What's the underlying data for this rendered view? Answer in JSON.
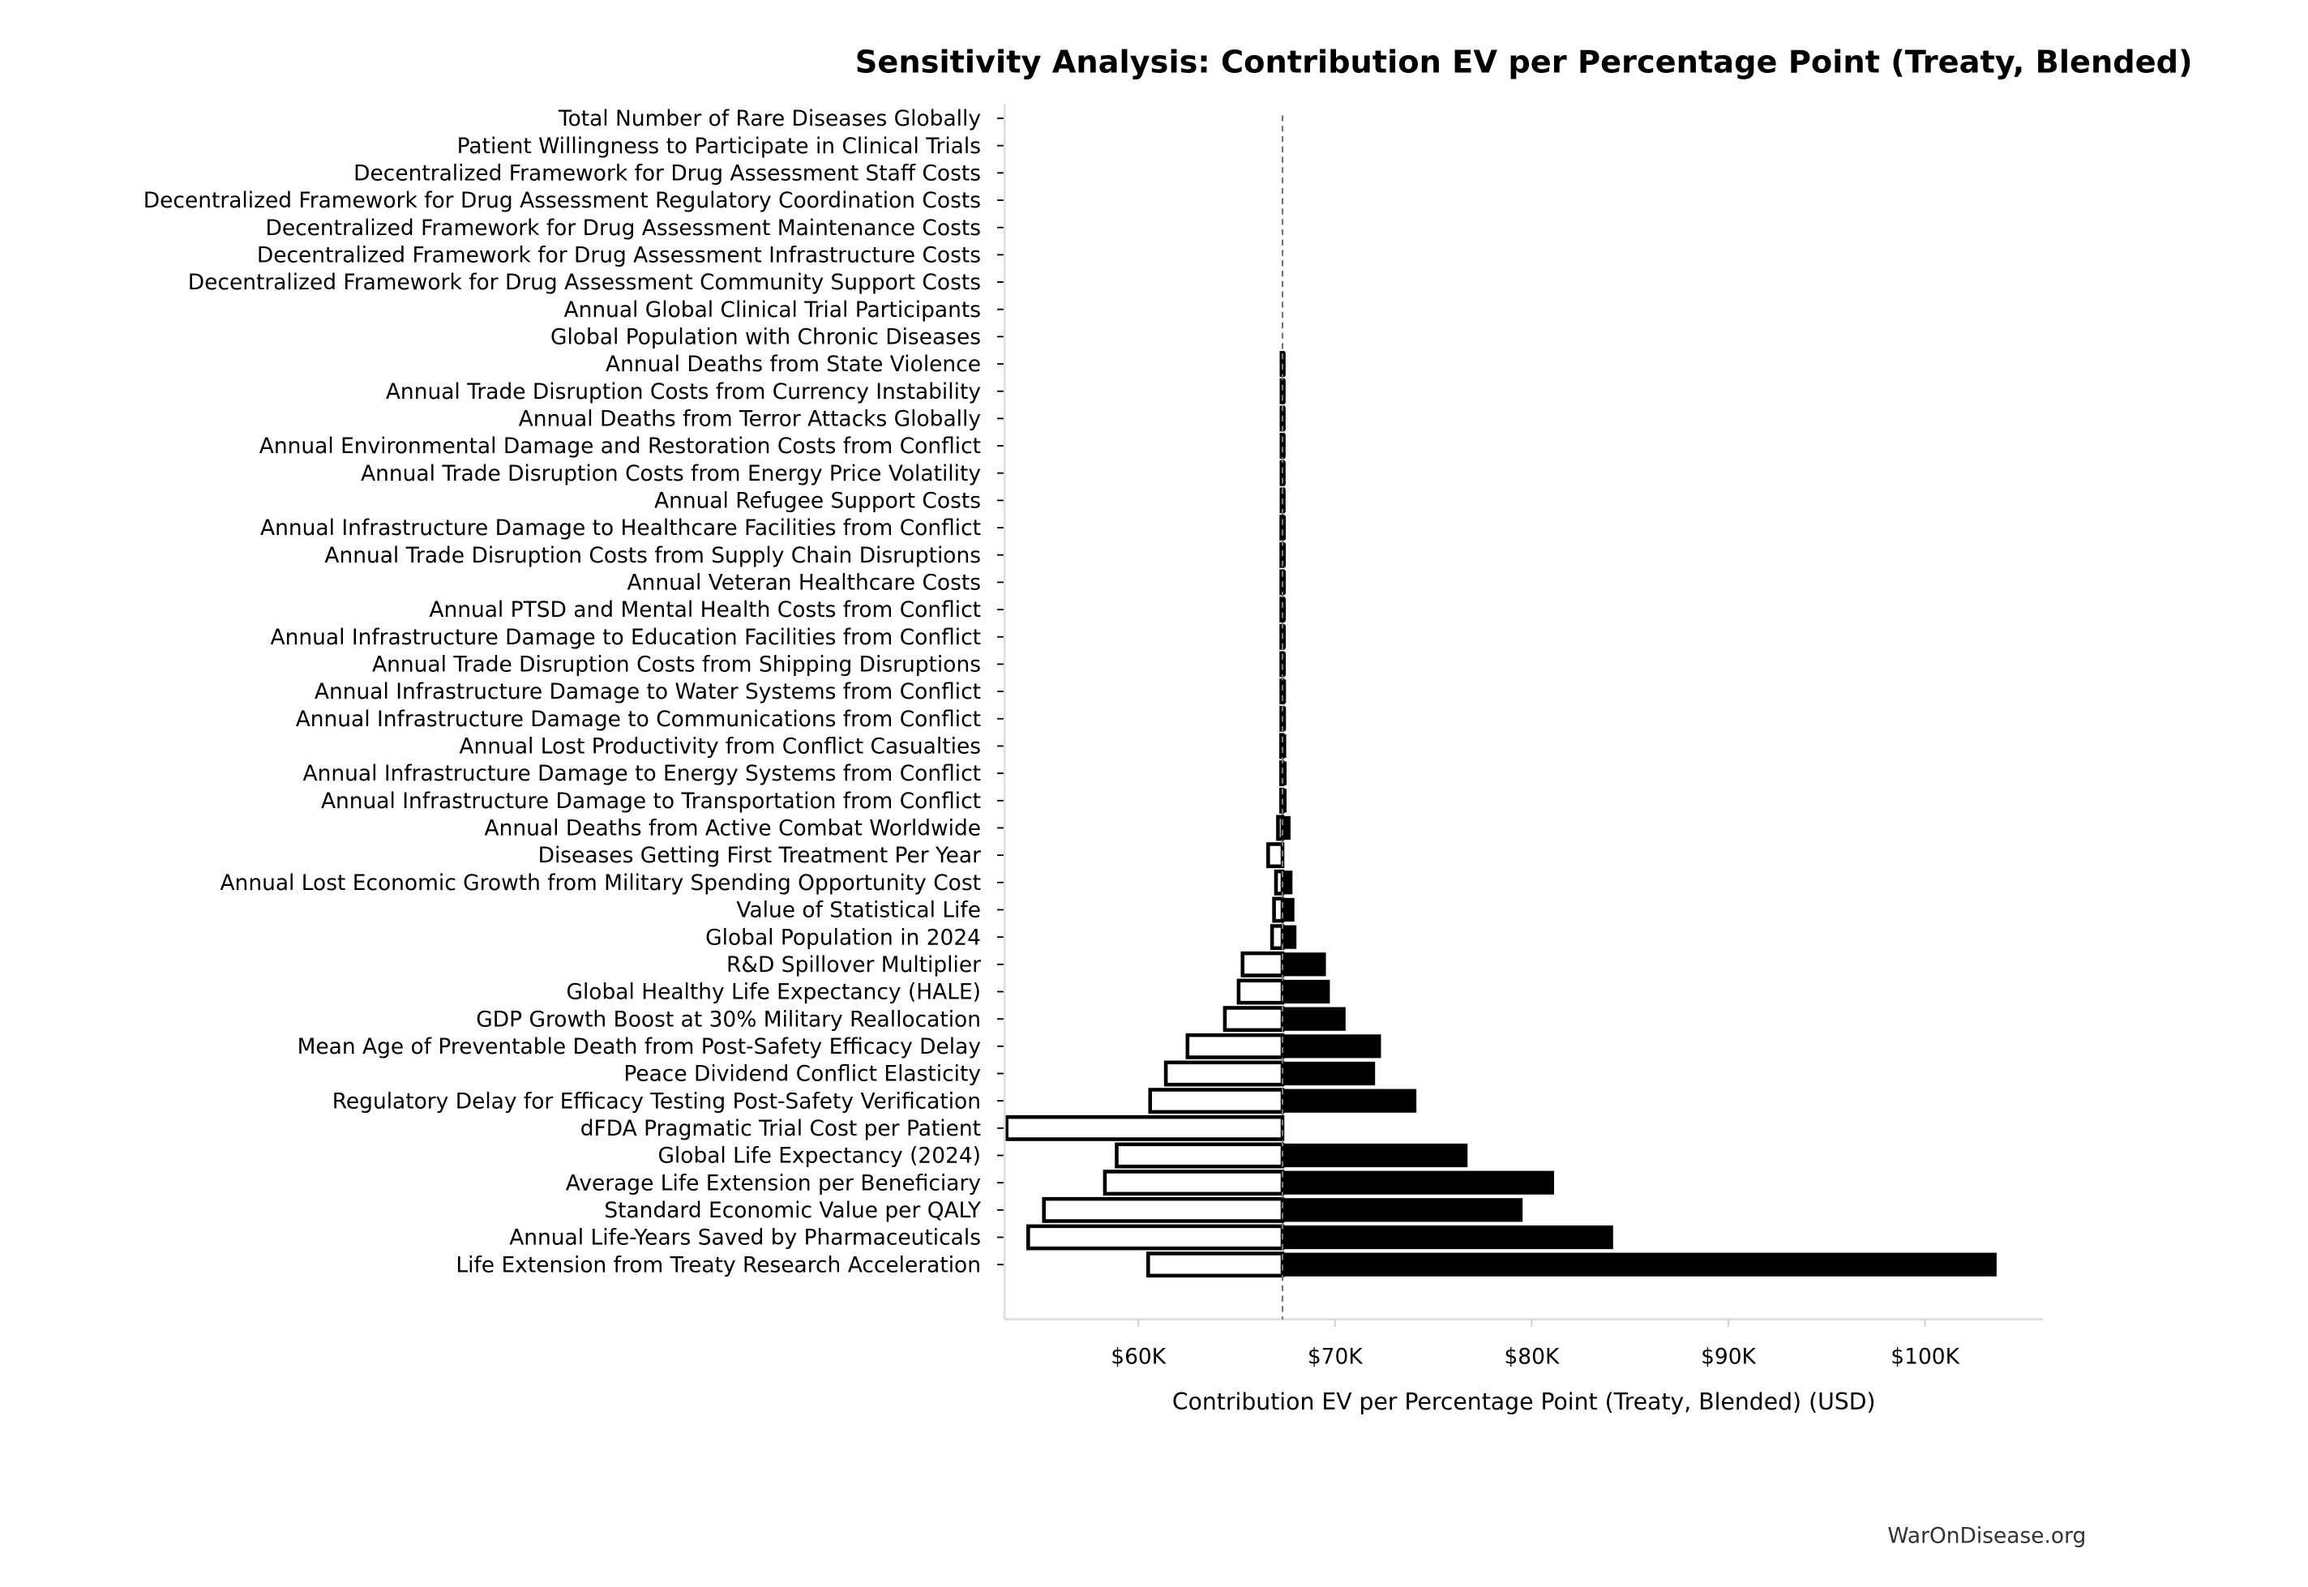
{
  "watermark": "WarOnDisease.org",
  "chart_data": {
    "type": "bar",
    "subtype": "tornado",
    "title": "Sensitivity Analysis: Contribution EV per Percentage Point (Treaty, Blended)",
    "xlabel": "Contribution EV per Percentage Point (Treaty, Blended) (USD)",
    "ylabel": "",
    "baseline": 67.33,
    "units": "thousand USD",
    "xlim": [
      53.2,
      106.0
    ],
    "xticks": [
      60,
      70,
      80,
      90,
      100
    ],
    "xtick_labels": [
      "$60K",
      "$70K",
      "$80K",
      "$90K",
      "$100K"
    ],
    "legend": "none",
    "grid": false,
    "colors": {
      "low": "#ffffff",
      "high": "#000000",
      "edge": "#000000",
      "baseline": "#777777"
    },
    "categories": [
      "Total Number of Rare Diseases Globally",
      "Patient Willingness to Participate in Clinical Trials",
      "Decentralized Framework for Drug Assessment Staff Costs",
      "Decentralized Framework for Drug Assessment Regulatory Coordination Costs",
      "Decentralized Framework for Drug Assessment Maintenance Costs",
      "Decentralized Framework for Drug Assessment Infrastructure Costs",
      "Decentralized Framework for Drug Assessment Community Support Costs",
      "Annual Global Clinical Trial Participants",
      "Global Population with Chronic Diseases",
      "Annual Deaths from State Violence",
      "Annual Trade Disruption Costs from Currency Instability",
      "Annual Deaths from Terror Attacks Globally",
      "Annual Environmental Damage and Restoration Costs from Conflict",
      "Annual Trade Disruption Costs from Energy Price Volatility",
      "Annual Refugee Support Costs",
      "Annual Infrastructure Damage to Healthcare Facilities from Conflict",
      "Annual Trade Disruption Costs from Supply Chain Disruptions",
      "Annual Veteran Healthcare Costs",
      "Annual PTSD and Mental Health Costs from Conflict",
      "Annual Infrastructure Damage to Education Facilities from Conflict",
      "Annual Trade Disruption Costs from Shipping Disruptions",
      "Annual Infrastructure Damage to Water Systems from Conflict",
      "Annual Infrastructure Damage to Communications from Conflict",
      "Annual Lost Productivity from Conflict Casualties",
      "Annual Infrastructure Damage to Energy Systems from Conflict",
      "Annual Infrastructure Damage to Transportation from Conflict",
      "Annual Deaths from Active Combat Worldwide",
      "Diseases Getting First Treatment Per Year",
      "Annual Lost Economic Growth from Military Spending Opportunity Cost",
      "Value of Statistical Life",
      "Global Population in 2024",
      "R&D Spillover Multiplier",
      "Global Healthy Life Expectancy (HALE)",
      "GDP Growth Boost at 30% Military Reallocation",
      "Mean Age of Preventable Death from Post-Safety Efficacy Delay",
      "Peace Dividend Conflict Elasticity",
      "Regulatory Delay for Efficacy Testing Post-Safety Verification",
      "dFDA Pragmatic Trial Cost per Patient",
      "Global Life Expectancy (2024)",
      "Average Life Extension per Beneficiary",
      "Standard Economic Value per QALY",
      "Annual Life-Years Saved by Pharmaceuticals",
      "Life Extension from Treaty Research Acceleration"
    ],
    "low_values": [
      67.33,
      67.33,
      67.33,
      67.33,
      67.33,
      67.33,
      67.33,
      67.33,
      67.33,
      67.28,
      67.28,
      67.28,
      67.28,
      67.28,
      67.28,
      67.27,
      67.27,
      67.27,
      67.27,
      67.27,
      67.27,
      67.27,
      67.27,
      67.26,
      67.26,
      67.26,
      67.1,
      66.6,
      67.0,
      66.9,
      66.8,
      65.3,
      65.1,
      64.4,
      62.5,
      61.4,
      60.6,
      53.3,
      58.9,
      58.3,
      55.2,
      54.4,
      60.5
    ],
    "high_values": [
      67.33,
      67.33,
      67.33,
      67.33,
      67.33,
      67.33,
      67.33,
      67.33,
      67.33,
      67.45,
      67.45,
      67.45,
      67.45,
      67.45,
      67.45,
      67.46,
      67.46,
      67.46,
      67.46,
      67.46,
      67.46,
      67.47,
      67.47,
      67.48,
      67.5,
      67.5,
      67.7,
      67.33,
      67.8,
      67.9,
      68.0,
      69.5,
      69.7,
      70.5,
      72.3,
      72.0,
      74.1,
      67.33,
      76.7,
      81.1,
      79.5,
      84.1,
      103.6
    ]
  }
}
